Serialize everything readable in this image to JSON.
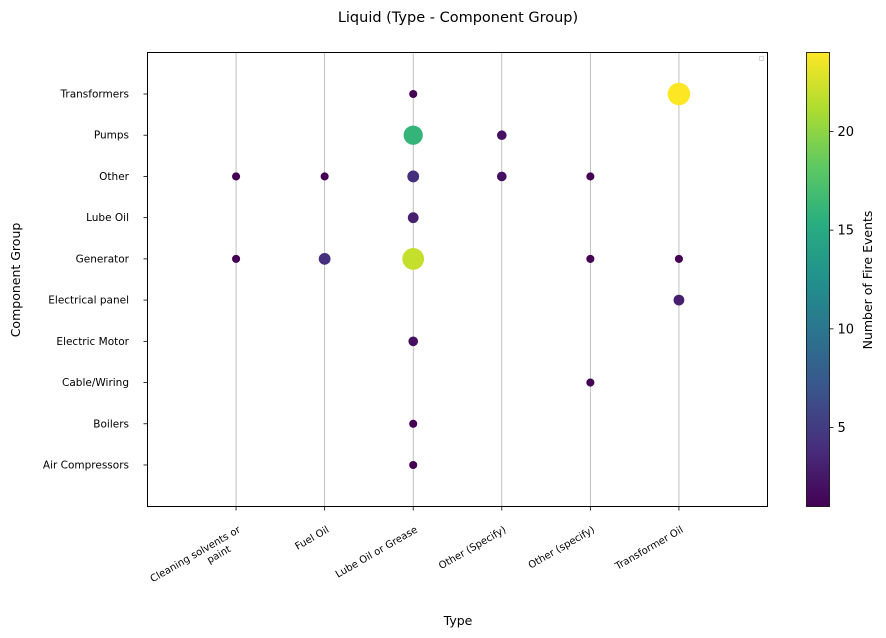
{
  "chart_data": {
    "type": "scatter",
    "title": "Liquid (Type - Component Group)",
    "xlabel": "Type",
    "ylabel": "Component Group",
    "x_categories": [
      [
        "Cleaning solvents or",
        "paint"
      ],
      [
        "Fuel Oil"
      ],
      [
        "Lube Oil or Grease"
      ],
      [
        "Other (Specify)"
      ],
      [
        "Other (specify)"
      ],
      [
        "Transformer Oil"
      ]
    ],
    "y_categories": [
      "Air Compressors",
      "Boilers",
      "Cable/Wiring",
      "Electric Motor",
      "Electrical panel",
      "Generator",
      "Lube Oil",
      "Other",
      "Pumps",
      "Transformers"
    ],
    "points": [
      {
        "x": 2,
        "y": 9,
        "count": 1
      },
      {
        "x": 5,
        "y": 9,
        "count": 24
      },
      {
        "x": 2,
        "y": 8,
        "count": 16
      },
      {
        "x": 3,
        "y": 8,
        "count": 2
      },
      {
        "x": 0,
        "y": 7,
        "count": 1
      },
      {
        "x": 1,
        "y": 7,
        "count": 1
      },
      {
        "x": 2,
        "y": 7,
        "count": 4
      },
      {
        "x": 3,
        "y": 7,
        "count": 2
      },
      {
        "x": 4,
        "y": 7,
        "count": 1
      },
      {
        "x": 2,
        "y": 6,
        "count": 3
      },
      {
        "x": 0,
        "y": 5,
        "count": 1
      },
      {
        "x": 1,
        "y": 5,
        "count": 4
      },
      {
        "x": 2,
        "y": 5,
        "count": 22
      },
      {
        "x": 4,
        "y": 5,
        "count": 1
      },
      {
        "x": 5,
        "y": 5,
        "count": 1
      },
      {
        "x": 5,
        "y": 4,
        "count": 3
      },
      {
        "x": 2,
        "y": 3,
        "count": 2
      },
      {
        "x": 4,
        "y": 2,
        "count": 1
      },
      {
        "x": 2,
        "y": 1,
        "count": 1
      },
      {
        "x": 2,
        "y": 0,
        "count": 1
      }
    ],
    "colorbar": {
      "label": "Number of Fire Events",
      "range": [
        1,
        24
      ],
      "ticks": [
        5,
        10,
        15,
        20
      ],
      "colormap": "viridis"
    },
    "grid": "vertical lines at x categories",
    "legend": "top-right, empty"
  }
}
